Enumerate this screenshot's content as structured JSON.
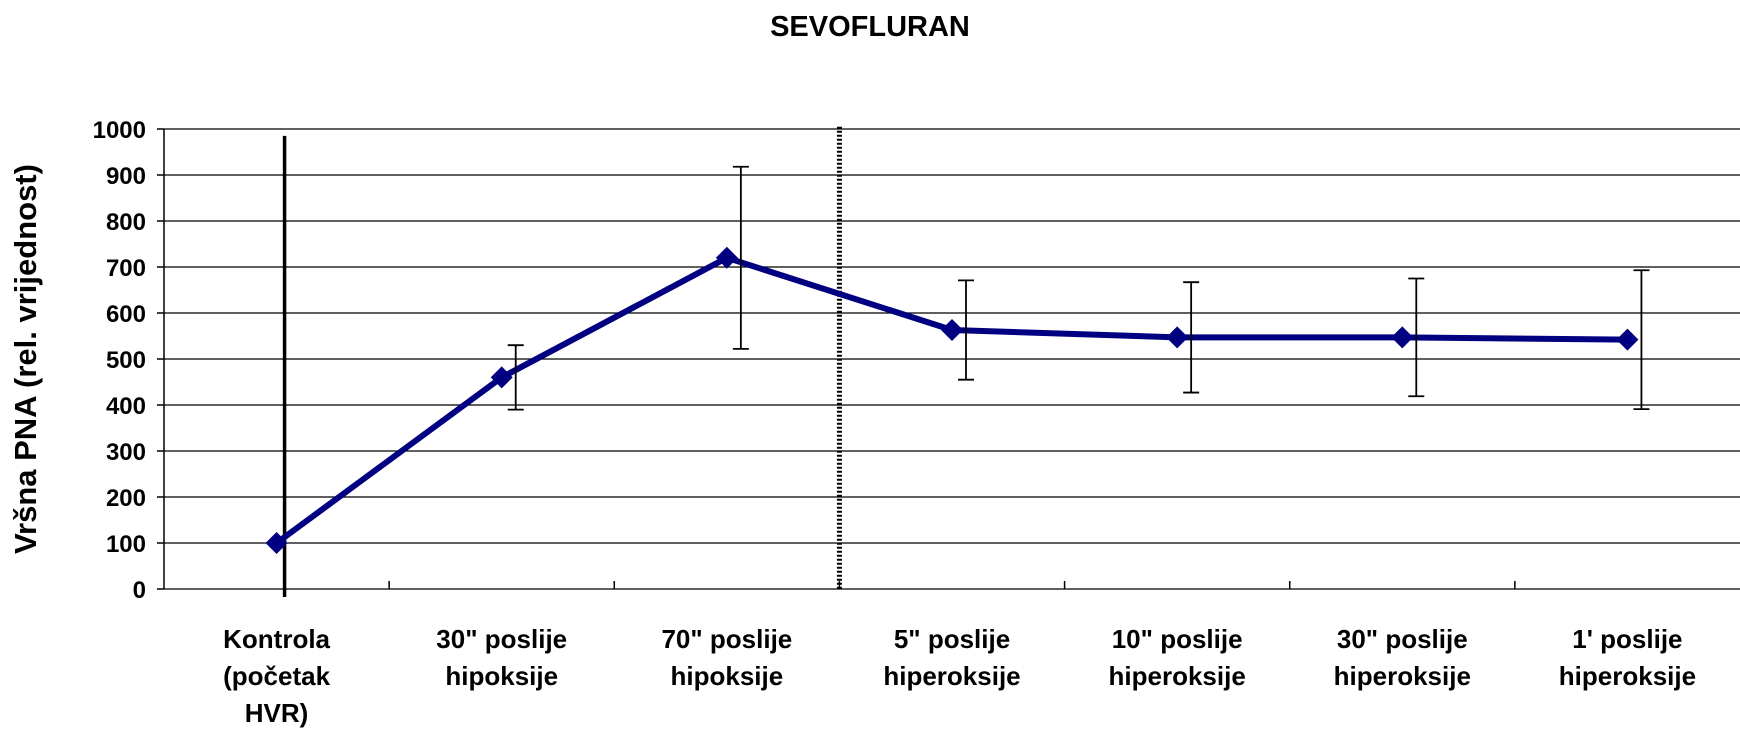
{
  "chart_data": {
    "type": "line",
    "title": "SEVOFLURAN",
    "ylabel": "Vršna PNA (rel. vrijednost)",
    "categories": [
      "Kontrola\n(početak\nHVR)",
      "30\" poslije\nhipoksije",
      "70\" poslije\nhipoksije",
      "5\" poslije\nhiperoksije",
      "10\" poslije\nhiperoksije",
      "30\" poslije\nhiperoksije",
      "1' poslije\nhiperoksije"
    ],
    "series": [
      {
        "color": "#000080",
        "values": [
          100,
          460,
          720,
          563,
          547,
          547,
          542
        ],
        "errors": [
          null,
          70,
          198,
          108,
          120,
          128,
          151
        ]
      }
    ],
    "ylim": [
      0,
      1000
    ],
    "yticks": [
      0,
      100,
      200,
      300,
      400,
      500,
      600,
      700,
      800,
      900,
      1000
    ],
    "grid": true
  }
}
